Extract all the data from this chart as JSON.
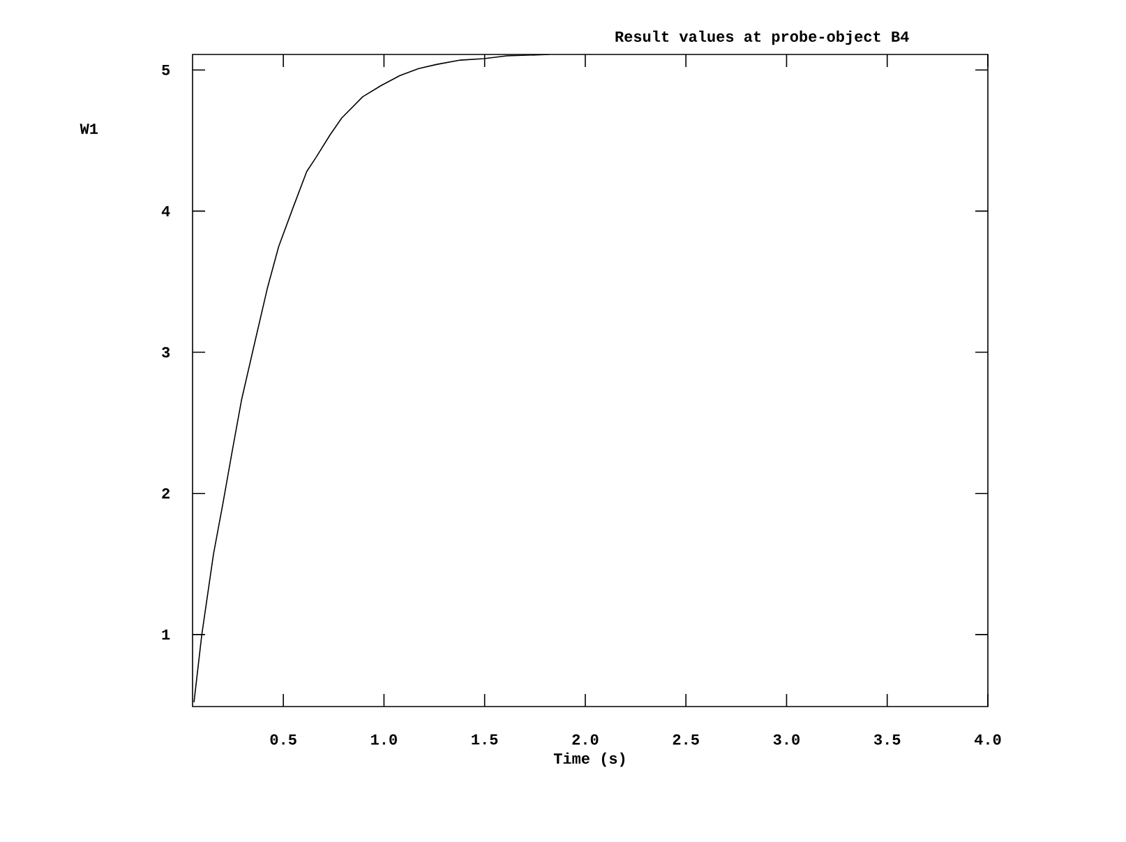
{
  "chart_data": {
    "type": "line",
    "title": "Result values at probe-object B4",
    "xlabel": "Time (s)",
    "ylabel": "W1",
    "x": [
      0.056,
      0.095,
      0.153,
      0.2,
      0.246,
      0.292,
      0.35,
      0.42,
      0.477,
      0.547,
      0.616,
      0.662,
      0.732,
      0.79,
      0.894,
      0.986,
      1.079,
      1.172,
      1.264,
      1.38,
      1.496,
      1.61,
      1.82
    ],
    "series": [
      {
        "color": "#000000",
        "values": [
          0.52,
          1.0,
          1.57,
          1.93,
          2.3,
          2.66,
          3.02,
          3.45,
          3.75,
          4.02,
          4.28,
          4.38,
          4.54,
          4.66,
          4.81,
          4.89,
          4.96,
          5.01,
          5.04,
          5.07,
          5.08,
          5.1,
          5.11
        ]
      }
    ],
    "xlim": [
      0.049,
      4.0
    ],
    "ylim": [
      0.49,
      5.11
    ],
    "xticks": [
      0.5,
      {
        "value": 1.0,
        "label": "1.0"
      },
      1.5,
      {
        "value": 2.0,
        "label": "2.0"
      },
      2.5,
      {
        "value": 3.0,
        "label": "3.0"
      },
      3.5,
      {
        "value": 4.0,
        "label": "4.0"
      }
    ],
    "yticks": [
      1,
      2,
      3,
      4,
      5
    ],
    "grid": false,
    "marker": "none",
    "line_style": "solid"
  }
}
